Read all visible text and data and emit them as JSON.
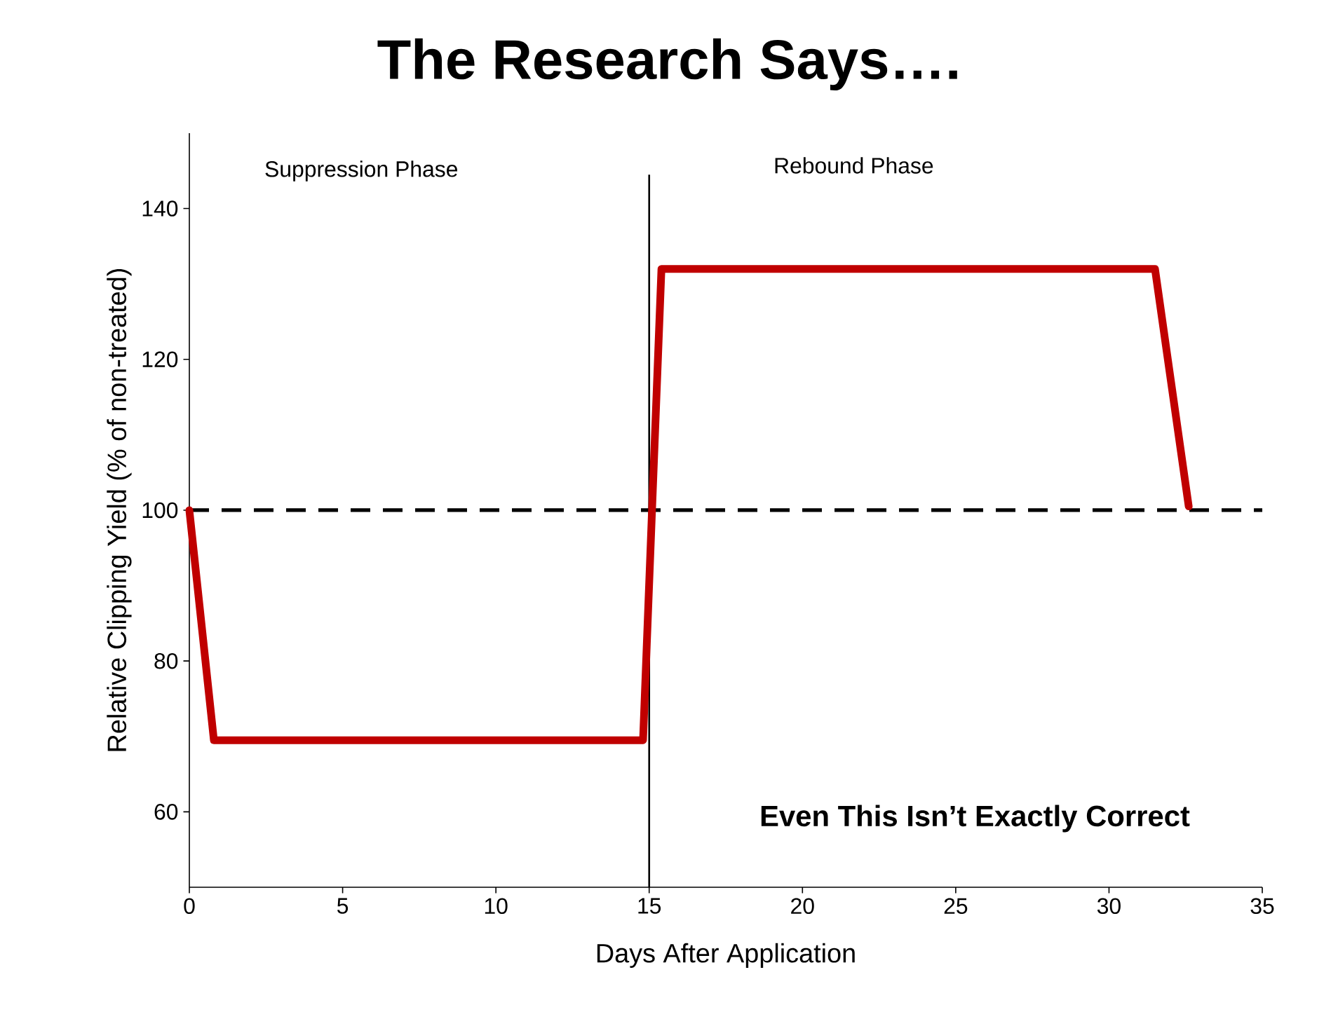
{
  "chart_data": {
    "type": "line",
    "title": "The Research Says….",
    "xlabel": "Days After Application",
    "ylabel": "Relative Clipping Yield (% of non-treated)",
    "xlim": [
      0,
      35
    ],
    "ylim": [
      50,
      150
    ],
    "xticks": [
      0,
      5,
      10,
      15,
      20,
      25,
      30,
      35
    ],
    "yticks": [
      60,
      80,
      100,
      120,
      140
    ],
    "series": [
      {
        "color": "#c00000",
        "x": [
          0,
          0.8,
          14.8,
          15.4,
          31.5,
          32.6
        ],
        "values": [
          100,
          69.5,
          69.5,
          132,
          132,
          100.5
        ]
      }
    ],
    "ref_lines": [
      {
        "axis": "y",
        "value": 100,
        "line_style": "dashed",
        "color": "#000000"
      },
      {
        "axis": "x",
        "value": 15,
        "line_style": "solid",
        "color": "#000000"
      }
    ],
    "annotations": [
      "Suppression Phase",
      "Rebound Phase",
      "Even This Isn’t Exactly Correct"
    ],
    "grid": false,
    "marker": "none",
    "line_style": "solid"
  }
}
